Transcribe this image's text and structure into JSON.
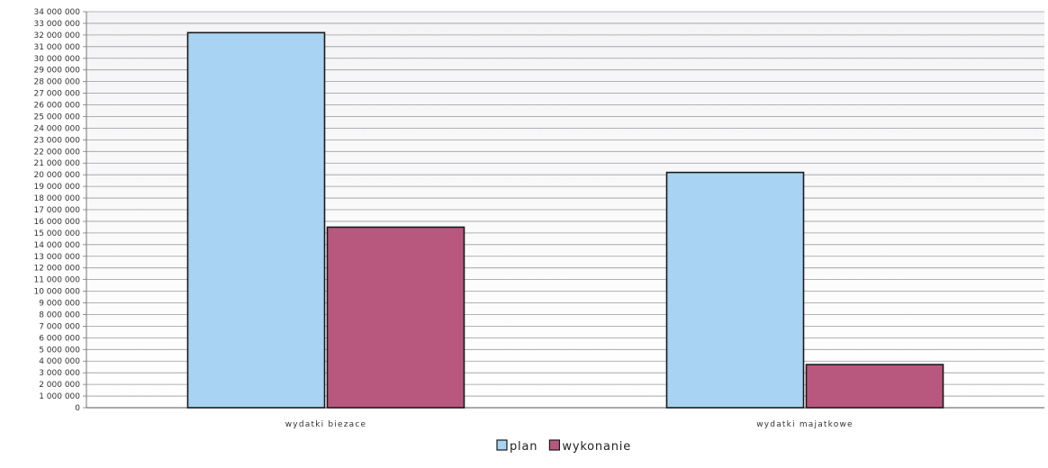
{
  "chart_data": {
    "type": "bar",
    "categories": [
      "wydatki biezace",
      "wydatki majatkowe"
    ],
    "series": [
      {
        "name": "plan",
        "values": [
          32200000,
          20200000
        ],
        "color": "#a9d3f3"
      },
      {
        "name": "wykonanie",
        "values": [
          15500000,
          3700000
        ],
        "color": "#b8587f"
      }
    ],
    "ylim": [
      0,
      34000000
    ],
    "y_tick_step": 1000000,
    "y_tick_labels": [
      "0",
      "1 000 000",
      "2 000 000",
      "3 000 000",
      "4 000 000",
      "5 000 000",
      "6 000 000",
      "7 000 000",
      "8 000 000",
      "9 000 000",
      "10 000 000",
      "11 000 000",
      "12 000 000",
      "13 000 000",
      "14 000 000",
      "15 000 000",
      "16 000 000",
      "17 000 000",
      "18 000 000",
      "19 000 000",
      "20 000 000",
      "21 000 000",
      "22 000 000",
      "23 000 000",
      "24 000 000",
      "25 000 000",
      "26 000 000",
      "27 000 000",
      "28 000 000",
      "29 000 000",
      "30 000 000",
      "31 000 000",
      "32 000 000",
      "33 000 000",
      "34 000 000"
    ],
    "grid": true,
    "legend_position": "bottom-center",
    "title": "",
    "xlabel": "",
    "ylabel": ""
  }
}
